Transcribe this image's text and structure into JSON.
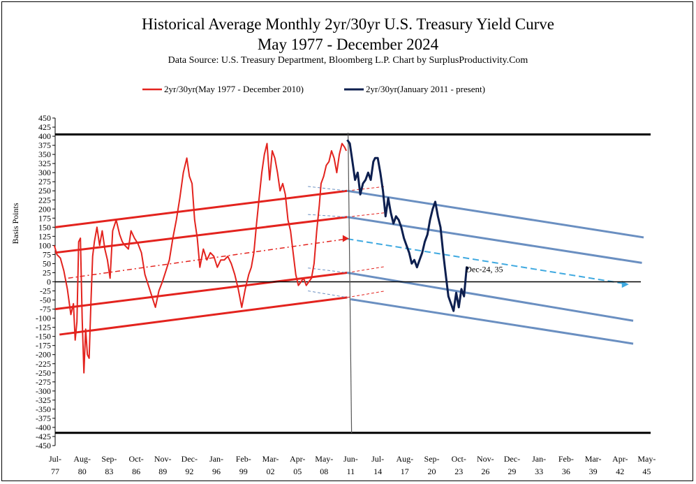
{
  "title": "Historical Average Monthly 2yr/30yr U.S. Treasury Yield Curve",
  "subtitle": "May 1977 - December 2024",
  "source": "Data Source:  U.S. Treasury  Department,  Bloomberg  L.P.    Chart by SurplusProductivity.Com",
  "chart_data": {
    "type": "line",
    "ylabel": "Basis Points",
    "ylim": [
      -450,
      450
    ],
    "y_ticks": [
      450,
      425,
      400,
      375,
      350,
      325,
      300,
      275,
      250,
      225,
      200,
      175,
      150,
      125,
      100,
      75,
      50,
      25,
      0,
      -25,
      -50,
      -75,
      -100,
      -125,
      -150,
      -175,
      -200,
      -225,
      -250,
      -275,
      -300,
      -325,
      -350,
      -375,
      -400,
      -425,
      -450
    ],
    "x_ticks": [
      {
        "top": "Jul-",
        "bottom": "77",
        "t": 1977.5
      },
      {
        "top": "Aug-",
        "bottom": "80",
        "t": 1980.6
      },
      {
        "top": "Sep-",
        "bottom": "83",
        "t": 1983.7
      },
      {
        "top": "Oct-",
        "bottom": "86",
        "t": 1986.8
      },
      {
        "top": "Nov-",
        "bottom": "89",
        "t": 1989.85
      },
      {
        "top": "Dec-",
        "bottom": "92",
        "t": 1992.9
      },
      {
        "top": "Jan-",
        "bottom": "96",
        "t": 1996.0
      },
      {
        "top": "Feb-",
        "bottom": "99",
        "t": 1999.1
      },
      {
        "top": "Mar-",
        "bottom": "02",
        "t": 2002.2
      },
      {
        "top": "Apr-",
        "bottom": "05",
        "t": 2005.3
      },
      {
        "top": "May-",
        "bottom": "08",
        "t": 2008.35
      },
      {
        "top": "Jun-",
        "bottom": "11",
        "t": 2011.4
      },
      {
        "top": "Jul-",
        "bottom": "14",
        "t": 2014.5
      },
      {
        "top": "Aug-",
        "bottom": "17",
        "t": 2017.6
      },
      {
        "top": "Sep-",
        "bottom": "20",
        "t": 2020.7
      },
      {
        "top": "Oct-",
        "bottom": "23",
        "t": 2023.8
      },
      {
        "top": "Nov-",
        "bottom": "26",
        "t": 2026.85
      },
      {
        "top": "Dec-",
        "bottom": "29",
        "t": 2029.9
      },
      {
        "top": "Jan-",
        "bottom": "33",
        "t": 2033.0
      },
      {
        "top": "Feb-",
        "bottom": "36",
        "t": 2036.1
      },
      {
        "top": "Mar-",
        "bottom": "39",
        "t": 2039.2
      },
      {
        "top": "Apr-",
        "bottom": "42",
        "t": 2042.3
      },
      {
        "top": "May-",
        "bottom": "45",
        "t": 2045.35
      }
    ],
    "series": [
      {
        "name": "2yr/30yr(May 1977 - December 2010)",
        "color": "#e3231e",
        "x": [
          1977.4,
          1977.7,
          1978.1,
          1978.5,
          1978.9,
          1979.3,
          1979.6,
          1979.8,
          1980.0,
          1980.2,
          1980.4,
          1980.6,
          1980.8,
          1981.0,
          1981.2,
          1981.4,
          1981.6,
          1981.8,
          1982.0,
          1982.3,
          1982.6,
          1982.9,
          1983.2,
          1983.5,
          1983.8,
          1984.1,
          1984.5,
          1984.9,
          1985.2,
          1985.5,
          1985.9,
          1986.2,
          1986.6,
          1987.0,
          1987.4,
          1987.8,
          1988.2,
          1988.6,
          1989.0,
          1989.4,
          1989.8,
          1990.2,
          1990.6,
          1991.0,
          1991.4,
          1991.8,
          1992.2,
          1992.6,
          1992.9,
          1993.2,
          1993.5,
          1993.8,
          1994.1,
          1994.5,
          1994.9,
          1995.3,
          1995.7,
          1996.1,
          1996.5,
          1996.9,
          1997.3,
          1997.7,
          1998.1,
          1998.5,
          1998.9,
          1999.3,
          1999.7,
          2000.0,
          2000.3,
          2000.6,
          2000.9,
          2001.2,
          2001.5,
          2001.8,
          2002.1,
          2002.4,
          2002.7,
          2003.0,
          2003.3,
          2003.6,
          2003.9,
          2004.2,
          2004.5,
          2004.8,
          2005.1,
          2005.4,
          2005.7,
          2006.0,
          2006.3,
          2006.6,
          2006.9,
          2007.2,
          2007.5,
          2007.8,
          2008.0,
          2008.3,
          2008.6,
          2008.9,
          2009.2,
          2009.5,
          2009.8,
          2010.1,
          2010.4,
          2010.7,
          2010.9
        ],
        "y": [
          100,
          75,
          65,
          30,
          -20,
          -90,
          -60,
          -160,
          -110,
          110,
          120,
          -100,
          -250,
          -130,
          -200,
          -210,
          -60,
          70,
          110,
          150,
          100,
          140,
          90,
          60,
          10,
          140,
          170,
          130,
          110,
          100,
          90,
          140,
          120,
          105,
          80,
          20,
          -10,
          -40,
          -70,
          -25,
          0,
          30,
          60,
          120,
          170,
          230,
          300,
          340,
          290,
          270,
          170,
          120,
          40,
          90,
          60,
          80,
          70,
          40,
          60,
          60,
          70,
          50,
          20,
          -20,
          -70,
          -20,
          20,
          40,
          80,
          160,
          230,
          300,
          350,
          380,
          280,
          360,
          340,
          300,
          250,
          270,
          240,
          170,
          140,
          80,
          20,
          -10,
          0,
          10,
          -10,
          0,
          10,
          50,
          140,
          210,
          270,
          290,
          320,
          330,
          360,
          340,
          300,
          350,
          380,
          370,
          360
        ]
      },
      {
        "name": "2yr/30yr(January 2011 - present)",
        "color": "#0d1f4f",
        "x": [
          2011.0,
          2011.3,
          2011.6,
          2011.9,
          2012.2,
          2012.5,
          2012.8,
          2013.1,
          2013.4,
          2013.7,
          2014.0,
          2014.2,
          2014.5,
          2014.8,
          2015.1,
          2015.4,
          2015.7,
          2016.0,
          2016.3,
          2016.6,
          2016.9,
          2017.2,
          2017.5,
          2017.8,
          2018.1,
          2018.4,
          2018.7,
          2019.0,
          2019.3,
          2019.6,
          2019.9,
          2020.2,
          2020.5,
          2020.8,
          2021.1,
          2021.4,
          2021.7,
          2022.0,
          2022.3,
          2022.6,
          2022.9,
          2023.2,
          2023.5,
          2023.8,
          2024.1,
          2024.4,
          2024.7,
          2024.9
        ],
        "y": [
          390,
          380,
          330,
          280,
          300,
          240,
          270,
          280,
          300,
          280,
          330,
          340,
          340,
          300,
          250,
          180,
          230,
          190,
          160,
          180,
          170,
          150,
          120,
          100,
          80,
          50,
          60,
          40,
          60,
          80,
          110,
          130,
          170,
          200,
          220,
          180,
          150,
          80,
          20,
          -40,
          -60,
          -80,
          -30,
          -70,
          -20,
          -40,
          40,
          35
        ]
      }
    ],
    "annotation": "Dec-24, 35"
  }
}
